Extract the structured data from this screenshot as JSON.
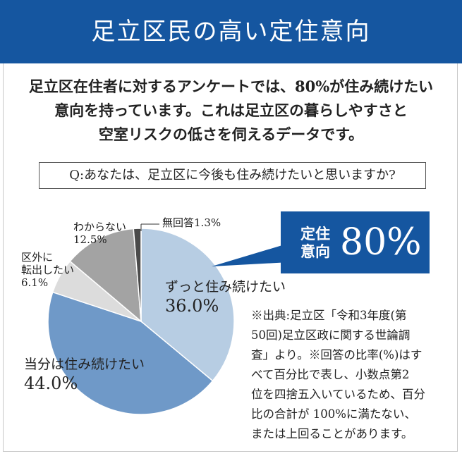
{
  "header": {
    "title": "足立区民の高い定住意向"
  },
  "intro": {
    "lines": [
      "足立区在住者に対するアンケートでは、80%が住み続けたい",
      "意向を持っています。これは足立区の暮らしやすさと",
      "空室リスクの低さを伺えるデータです。"
    ]
  },
  "question": {
    "text": "Q:あなたは、足立区に今後も住み続けたいと思いますか?"
  },
  "callout": {
    "label_line1": "定住",
    "label_line2": "意向",
    "value": "80%"
  },
  "note": {
    "lines": [
      "※出典:足立区「令和3年度(第",
      "50回)足立区政に関する世論調",
      "査」より。※回答の比率(%)はす",
      "べて百分比で表し、小数点第2",
      "位を四捨五入いているため、百分",
      "比の合計が 100%に満たない、",
      "または上回ることがあります。"
    ]
  },
  "chart_data": {
    "type": "pie",
    "slices": [
      {
        "label": "ずっと住み続けたい",
        "value": 36.0,
        "value_label": "36.0%",
        "color": "#b7cde3"
      },
      {
        "label": "当分は住み続けたい",
        "value": 44.0,
        "value_label": "44.0%",
        "color": "#6f99c8"
      },
      {
        "label": "区外に転出したい",
        "value": 6.1,
        "value_label": "6.1%",
        "color": "#dcdcdc"
      },
      {
        "label": "わからない",
        "value": 12.5,
        "value_label": "12.5%",
        "color": "#a3a3a3"
      },
      {
        "label": "無回答",
        "value": 1.3,
        "value_label": "1.3%",
        "color": "#4a4a4a"
      }
    ]
  }
}
